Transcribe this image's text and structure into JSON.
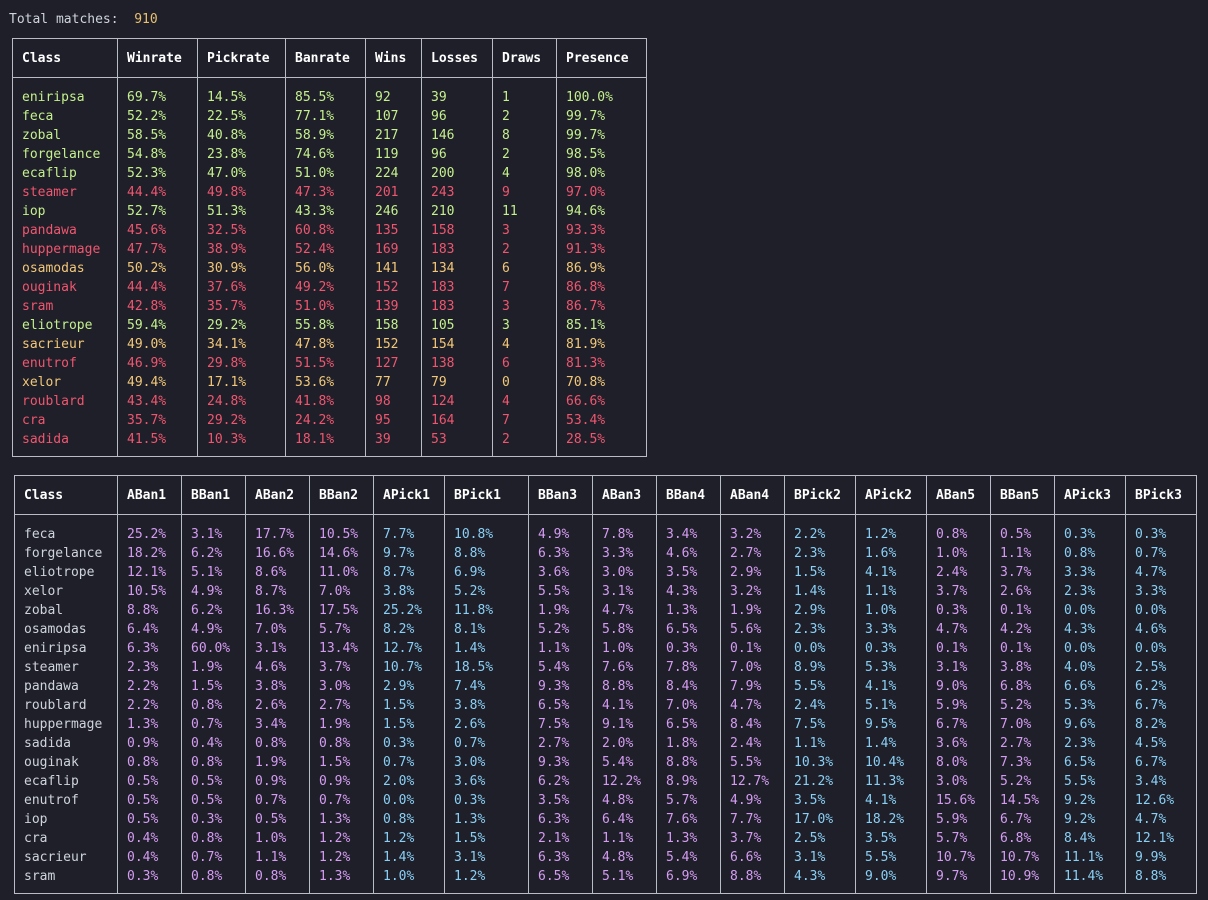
{
  "summary": {
    "label": "Total matches:",
    "value": "910"
  },
  "colors": {
    "good": "#c5f08d",
    "mid": "#f2c779",
    "bad": "#f0566f",
    "ban": "#d59cf2",
    "pick": "#8ad0f6"
  },
  "class_table": {
    "headers": [
      "Class",
      "Winrate",
      "Pickrate",
      "Banrate",
      "Wins",
      "Losses",
      "Draws",
      "Presence"
    ],
    "rows": [
      {
        "tier": "good",
        "cells": [
          "eniripsa",
          "69.7%",
          "14.5%",
          "85.5%",
          "92",
          "39",
          "1",
          "100.0%"
        ]
      },
      {
        "tier": "good",
        "cells": [
          "feca",
          "52.2%",
          "22.5%",
          "77.1%",
          "107",
          "96",
          "2",
          "99.7%"
        ]
      },
      {
        "tier": "good",
        "cells": [
          "zobal",
          "58.5%",
          "40.8%",
          "58.9%",
          "217",
          "146",
          "8",
          "99.7%"
        ]
      },
      {
        "tier": "good",
        "cells": [
          "forgelance",
          "54.8%",
          "23.8%",
          "74.6%",
          "119",
          "96",
          "2",
          "98.5%"
        ]
      },
      {
        "tier": "good",
        "cells": [
          "ecaflip",
          "52.3%",
          "47.0%",
          "51.0%",
          "224",
          "200",
          "4",
          "98.0%"
        ]
      },
      {
        "tier": "bad",
        "cells": [
          "steamer",
          "44.4%",
          "49.8%",
          "47.3%",
          "201",
          "243",
          "9",
          "97.0%"
        ]
      },
      {
        "tier": "good",
        "cells": [
          "iop",
          "52.7%",
          "51.3%",
          "43.3%",
          "246",
          "210",
          "11",
          "94.6%"
        ]
      },
      {
        "tier": "bad",
        "cells": [
          "pandawa",
          "45.6%",
          "32.5%",
          "60.8%",
          "135",
          "158",
          "3",
          "93.3%"
        ]
      },
      {
        "tier": "bad",
        "cells": [
          "huppermage",
          "47.7%",
          "38.9%",
          "52.4%",
          "169",
          "183",
          "2",
          "91.3%"
        ]
      },
      {
        "tier": "mid",
        "cells": [
          "osamodas",
          "50.2%",
          "30.9%",
          "56.0%",
          "141",
          "134",
          "6",
          "86.9%"
        ]
      },
      {
        "tier": "bad",
        "cells": [
          "ouginak",
          "44.4%",
          "37.6%",
          "49.2%",
          "152",
          "183",
          "7",
          "86.8%"
        ]
      },
      {
        "tier": "bad",
        "cells": [
          "sram",
          "42.8%",
          "35.7%",
          "51.0%",
          "139",
          "183",
          "3",
          "86.7%"
        ]
      },
      {
        "tier": "good",
        "cells": [
          "eliotrope",
          "59.4%",
          "29.2%",
          "55.8%",
          "158",
          "105",
          "3",
          "85.1%"
        ]
      },
      {
        "tier": "mid",
        "cells": [
          "sacrieur",
          "49.0%",
          "34.1%",
          "47.8%",
          "152",
          "154",
          "4",
          "81.9%"
        ]
      },
      {
        "tier": "bad",
        "cells": [
          "enutrof",
          "46.9%",
          "29.8%",
          "51.5%",
          "127",
          "138",
          "6",
          "81.3%"
        ]
      },
      {
        "tier": "mid",
        "cells": [
          "xelor",
          "49.4%",
          "17.1%",
          "53.6%",
          "77",
          "79",
          "0",
          "70.8%"
        ]
      },
      {
        "tier": "bad",
        "cells": [
          "roublard",
          "43.4%",
          "24.8%",
          "41.8%",
          "98",
          "124",
          "4",
          "66.6%"
        ]
      },
      {
        "tier": "bad",
        "cells": [
          "cra",
          "35.7%",
          "29.2%",
          "24.2%",
          "95",
          "164",
          "7",
          "53.4%"
        ]
      },
      {
        "tier": "bad",
        "cells": [
          "sadida",
          "41.5%",
          "10.3%",
          "18.1%",
          "39",
          "53",
          "2",
          "28.5%"
        ]
      }
    ]
  },
  "draft_table": {
    "headers": [
      "Class",
      "ABan1",
      "BBan1",
      "ABan2",
      "BBan2",
      "APick1",
      "BPick1",
      "BBan3",
      "ABan3",
      "BBan4",
      "ABan4",
      "BPick2",
      "APick2",
      "ABan5",
      "BBan5",
      "APick3",
      "BPick3"
    ],
    "column_kinds": [
      "class",
      "ban",
      "ban",
      "ban",
      "ban",
      "pick",
      "pick",
      "ban",
      "ban",
      "ban",
      "ban",
      "pick",
      "pick",
      "ban",
      "ban",
      "pick",
      "pick"
    ],
    "rows": [
      [
        "feca",
        "25.2%",
        "3.1%",
        "17.7%",
        "10.5%",
        "7.7%",
        "10.8%",
        "4.9%",
        "7.8%",
        "3.4%",
        "3.2%",
        "2.2%",
        "1.2%",
        "0.8%",
        "0.5%",
        "0.3%",
        "0.3%"
      ],
      [
        "forgelance",
        "18.2%",
        "6.2%",
        "16.6%",
        "14.6%",
        "9.7%",
        "8.8%",
        "6.3%",
        "3.3%",
        "4.6%",
        "2.7%",
        "2.3%",
        "1.6%",
        "1.0%",
        "1.1%",
        "0.8%",
        "0.7%"
      ],
      [
        "eliotrope",
        "12.1%",
        "5.1%",
        "8.6%",
        "11.0%",
        "8.7%",
        "6.9%",
        "3.6%",
        "3.0%",
        "3.5%",
        "2.9%",
        "1.5%",
        "4.1%",
        "2.4%",
        "3.7%",
        "3.3%",
        "4.7%"
      ],
      [
        "xelor",
        "10.5%",
        "4.9%",
        "8.7%",
        "7.0%",
        "3.8%",
        "5.2%",
        "5.5%",
        "3.1%",
        "4.3%",
        "3.2%",
        "1.4%",
        "1.1%",
        "3.7%",
        "2.6%",
        "2.3%",
        "3.3%"
      ],
      [
        "zobal",
        "8.8%",
        "6.2%",
        "16.3%",
        "17.5%",
        "25.2%",
        "11.8%",
        "1.9%",
        "4.7%",
        "1.3%",
        "1.9%",
        "2.9%",
        "1.0%",
        "0.3%",
        "0.1%",
        "0.0%",
        "0.0%"
      ],
      [
        "osamodas",
        "6.4%",
        "4.9%",
        "7.0%",
        "5.7%",
        "8.2%",
        "8.1%",
        "5.2%",
        "5.8%",
        "6.5%",
        "5.6%",
        "2.3%",
        "3.3%",
        "4.7%",
        "4.2%",
        "4.3%",
        "4.6%"
      ],
      [
        "eniripsa",
        "6.3%",
        "60.0%",
        "3.1%",
        "13.4%",
        "12.7%",
        "1.4%",
        "1.1%",
        "1.0%",
        "0.3%",
        "0.1%",
        "0.0%",
        "0.3%",
        "0.1%",
        "0.1%",
        "0.0%",
        "0.0%"
      ],
      [
        "steamer",
        "2.3%",
        "1.9%",
        "4.6%",
        "3.7%",
        "10.7%",
        "18.5%",
        "5.4%",
        "7.6%",
        "7.8%",
        "7.0%",
        "8.9%",
        "5.3%",
        "3.1%",
        "3.8%",
        "4.0%",
        "2.5%"
      ],
      [
        "pandawa",
        "2.2%",
        "1.5%",
        "3.8%",
        "3.0%",
        "2.9%",
        "7.4%",
        "9.3%",
        "8.8%",
        "8.4%",
        "7.9%",
        "5.5%",
        "4.1%",
        "9.0%",
        "6.8%",
        "6.6%",
        "6.2%"
      ],
      [
        "roublard",
        "2.2%",
        "0.8%",
        "2.6%",
        "2.7%",
        "1.5%",
        "3.8%",
        "6.5%",
        "4.1%",
        "7.0%",
        "4.7%",
        "2.4%",
        "5.1%",
        "5.9%",
        "5.2%",
        "5.3%",
        "6.7%"
      ],
      [
        "huppermage",
        "1.3%",
        "0.7%",
        "3.4%",
        "1.9%",
        "1.5%",
        "2.6%",
        "7.5%",
        "9.1%",
        "6.5%",
        "8.4%",
        "7.5%",
        "9.5%",
        "6.7%",
        "7.0%",
        "9.6%",
        "8.2%"
      ],
      [
        "sadida",
        "0.9%",
        "0.4%",
        "0.8%",
        "0.8%",
        "0.3%",
        "0.7%",
        "2.7%",
        "2.0%",
        "1.8%",
        "2.4%",
        "1.1%",
        "1.4%",
        "3.6%",
        "2.7%",
        "2.3%",
        "4.5%"
      ],
      [
        "ouginak",
        "0.8%",
        "0.8%",
        "1.9%",
        "1.5%",
        "0.7%",
        "3.0%",
        "9.3%",
        "5.4%",
        "8.8%",
        "5.5%",
        "10.3%",
        "10.4%",
        "8.0%",
        "7.3%",
        "6.5%",
        "6.7%"
      ],
      [
        "ecaflip",
        "0.5%",
        "0.5%",
        "0.9%",
        "0.9%",
        "2.0%",
        "3.6%",
        "6.2%",
        "12.2%",
        "8.9%",
        "12.7%",
        "21.2%",
        "11.3%",
        "3.0%",
        "5.2%",
        "5.5%",
        "3.4%"
      ],
      [
        "enutrof",
        "0.5%",
        "0.5%",
        "0.7%",
        "0.7%",
        "0.0%",
        "0.3%",
        "3.5%",
        "4.8%",
        "5.7%",
        "4.9%",
        "3.5%",
        "4.1%",
        "15.6%",
        "14.5%",
        "9.2%",
        "12.6%"
      ],
      [
        "iop",
        "0.5%",
        "0.3%",
        "0.5%",
        "1.3%",
        "0.8%",
        "1.3%",
        "6.3%",
        "6.4%",
        "7.6%",
        "7.7%",
        "17.0%",
        "18.2%",
        "5.9%",
        "6.7%",
        "9.2%",
        "4.7%"
      ],
      [
        "cra",
        "0.4%",
        "0.8%",
        "1.0%",
        "1.2%",
        "1.2%",
        "1.5%",
        "2.1%",
        "1.1%",
        "1.3%",
        "3.7%",
        "2.5%",
        "3.5%",
        "5.7%",
        "6.8%",
        "8.4%",
        "12.1%"
      ],
      [
        "sacrieur",
        "0.4%",
        "0.7%",
        "1.1%",
        "1.2%",
        "1.4%",
        "3.1%",
        "6.3%",
        "4.8%",
        "5.4%",
        "6.6%",
        "3.1%",
        "5.5%",
        "10.7%",
        "10.7%",
        "11.1%",
        "9.9%"
      ],
      [
        "sram",
        "0.3%",
        "0.8%",
        "0.8%",
        "1.3%",
        "1.0%",
        "1.2%",
        "6.5%",
        "5.1%",
        "6.9%",
        "8.8%",
        "4.3%",
        "9.0%",
        "9.7%",
        "10.9%",
        "11.4%",
        "8.8%"
      ]
    ]
  }
}
